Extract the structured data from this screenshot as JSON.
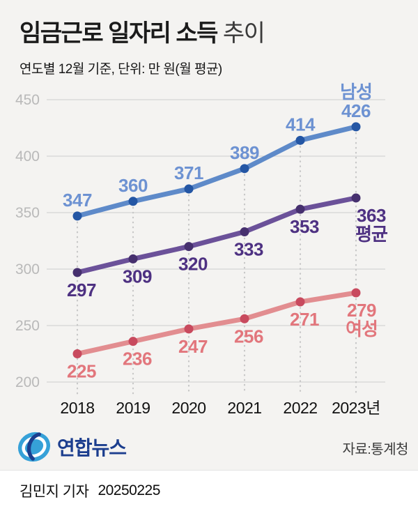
{
  "title": {
    "main": "임금근로 일자리 소득",
    "light": " 추이"
  },
  "subtitle": "연도별 12월 기준, 단위: 만 원(월 평균)",
  "footer": {
    "logo_text": "연합뉴스",
    "source": "자료:통계청"
  },
  "byline": {
    "reporter": "김민지 기자",
    "date": "20250225"
  },
  "colors": {
    "background": "#f4f3f1",
    "grid": "#d9d9d9",
    "dotted_guide": "#c7c7c7",
    "ytick_text": "#b9b9b9",
    "xtick_text": "#111111",
    "male_line": "#5e8ac9",
    "male_marker": "#2456a4",
    "male_label": "#6d92d2",
    "avg_line": "#6b5199",
    "avg_marker": "#46306e",
    "avg_label": "#4e3182",
    "female_line": "#e28d90",
    "female_marker": "#c84a5e",
    "female_label": "#e2767c"
  },
  "chart_data": {
    "type": "line",
    "title": "임금근로 일자리 소득 추이",
    "subtitle": "연도별 12월 기준, 단위: 만 원(월 평균)",
    "categories": [
      "2018",
      "2019",
      "2020",
      "2021",
      "2022",
      "2023년"
    ],
    "series": [
      {
        "name": "남성",
        "values": [
          347,
          360,
          371,
          389,
          414,
          426
        ],
        "line_color": "#5e8ac9",
        "marker_color": "#2456a4",
        "label_color": "#6d92d2",
        "label_position": "above"
      },
      {
        "name": "평균",
        "values": [
          297,
          309,
          320,
          333,
          353,
          363
        ],
        "line_color": "#6b5199",
        "marker_color": "#46306e",
        "label_color": "#4e3182",
        "label_position": "below"
      },
      {
        "name": "여성",
        "values": [
          225,
          236,
          247,
          256,
          271,
          279
        ],
        "line_color": "#e28d90",
        "marker_color": "#c84a5e",
        "label_color": "#e2767c",
        "label_position": "below"
      }
    ],
    "ylim": [
      200,
      450
    ],
    "yticks": [
      450,
      400,
      350,
      300,
      250,
      200
    ],
    "grid": true,
    "legend_position": "end-of-line",
    "source": "자료:통계청"
  }
}
